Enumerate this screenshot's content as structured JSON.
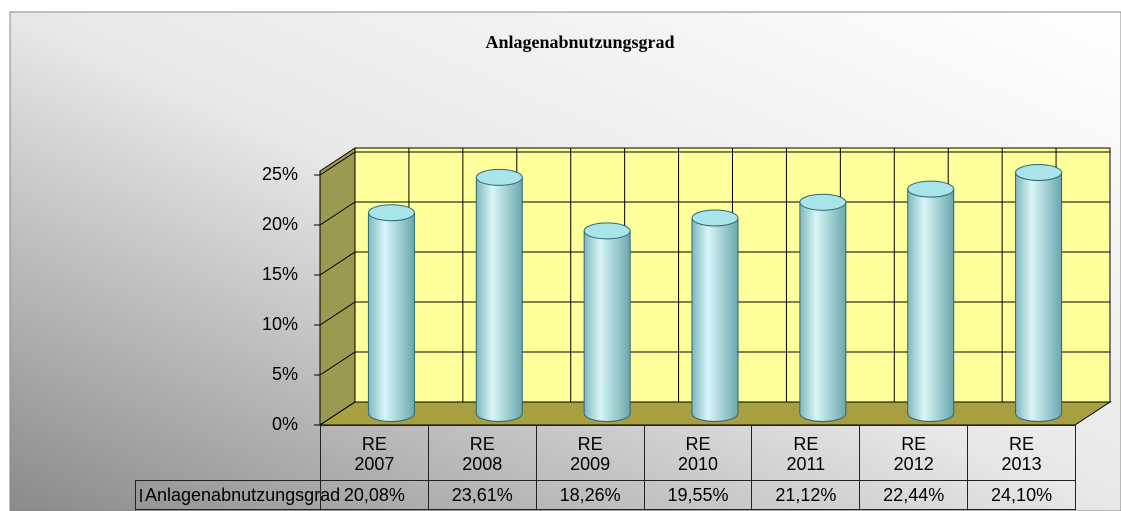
{
  "chart_data": {
    "type": "bar",
    "title": "Anlagenabnutzungsgrad",
    "categories": [
      "RE 2007",
      "RE 2008",
      "RE 2009",
      "RE 2010",
      "RE 2011",
      "RE 2012",
      "RE 2013"
    ],
    "series": [
      {
        "name": "Anlagenabnutzungsgrad",
        "color": "#a8e4ea",
        "values": [
          20.08,
          23.61,
          18.26,
          19.55,
          21.12,
          22.44,
          24.1
        ],
        "value_labels": [
          "20,08%",
          "23,61%",
          "18,26%",
          "19,55%",
          "21,12%",
          "22,44%",
          "24,10%"
        ]
      }
    ],
    "ylim": [
      0,
      25
    ],
    "yticks": [
      {
        "value": 0,
        "label": "0%"
      },
      {
        "value": 5,
        "label": "5%"
      },
      {
        "value": 10,
        "label": "10%"
      },
      {
        "value": 15,
        "label": "15%"
      },
      {
        "value": 20,
        "label": "20%"
      },
      {
        "value": 25,
        "label": "25%"
      }
    ],
    "grid": true
  }
}
